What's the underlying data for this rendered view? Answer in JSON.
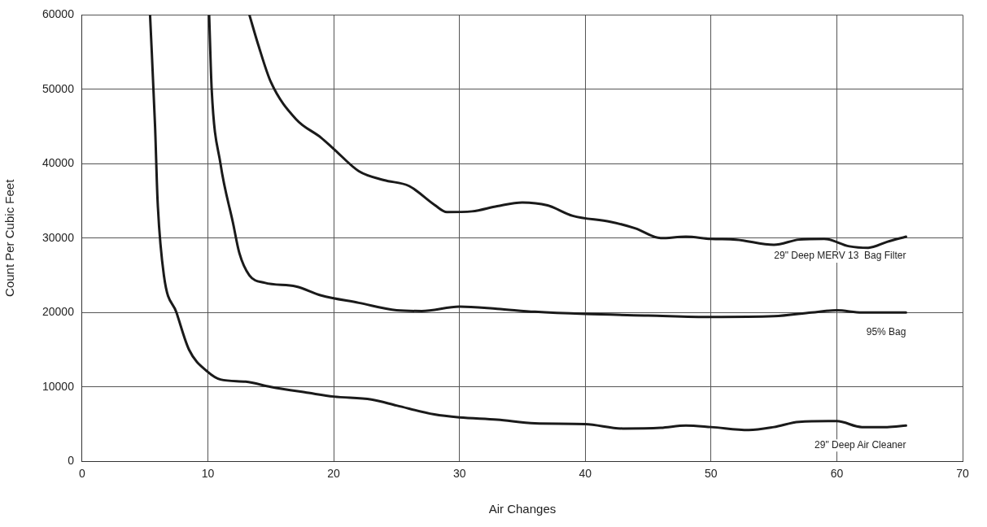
{
  "chart_data": {
    "type": "line",
    "xlabel": "Air Changes",
    "ylabel": "Count Per Cubic Feet",
    "xlim": [
      0,
      70
    ],
    "xticks": [
      0,
      10,
      20,
      30,
      40,
      50,
      60,
      70
    ],
    "ylim": [
      0,
      60000
    ],
    "yticks": [
      0,
      10000,
      20000,
      30000,
      40000,
      50000,
      60000
    ],
    "grid": true,
    "legend": false,
    "marker": "none",
    "line_style": "solid",
    "series": [
      {
        "name": "29\" Deep MERV 13  Bag Filter",
        "color": "#1a1a1a",
        "x": [
          13.3,
          14,
          15,
          17,
          19,
          20,
          22,
          24,
          26,
          28,
          29,
          31,
          33,
          35,
          37,
          39,
          42,
          44,
          46,
          48,
          50,
          52,
          55,
          57,
          59,
          61,
          62.5,
          64,
          65.5
        ],
        "values": [
          60000,
          56000,
          51000,
          46000,
          43500,
          42000,
          39000,
          37800,
          37000,
          34500,
          33500,
          33600,
          34300,
          34800,
          34400,
          33000,
          32200,
          31300,
          30000,
          30200,
          29900,
          29800,
          29100,
          29800,
          29900,
          28900,
          28700,
          29500,
          30200
        ]
      },
      {
        "name": "95% Bag",
        "color": "#1a1a1a",
        "x": [
          10.1,
          10.3,
          11,
          12,
          12.5,
          13.3,
          14.5,
          17,
          19,
          22,
          25,
          27,
          30,
          33,
          36,
          40,
          45,
          50,
          55,
          58,
          60,
          62,
          65.5
        ],
        "values": [
          60000,
          50000,
          40000,
          32000,
          28000,
          25000,
          24000,
          23500,
          22300,
          21300,
          20300,
          20200,
          20800,
          20500,
          20100,
          19800,
          19600,
          19400,
          19500,
          20000,
          20300,
          20000,
          20000
        ]
      },
      {
        "name": "29\" Deep Air Cleaner",
        "color": "#1a1a1a",
        "x": [
          5.4,
          5.8,
          6,
          6.5,
          7.5,
          8.5,
          10,
          11,
          13,
          15,
          18,
          20,
          23,
          25,
          28,
          30,
          33,
          36,
          40,
          43,
          46,
          48,
          50,
          53,
          55,
          57,
          60,
          62,
          64,
          65.5
        ],
        "values": [
          60000,
          45000,
          35000,
          25000,
          20000,
          15000,
          12000,
          11000,
          10700,
          10000,
          9200,
          8700,
          8300,
          7500,
          6300,
          5900,
          5600,
          5100,
          5000,
          4400,
          4500,
          4800,
          4600,
          4200,
          4600,
          5300,
          5400,
          4600,
          4600,
          4800
        ]
      }
    ]
  }
}
